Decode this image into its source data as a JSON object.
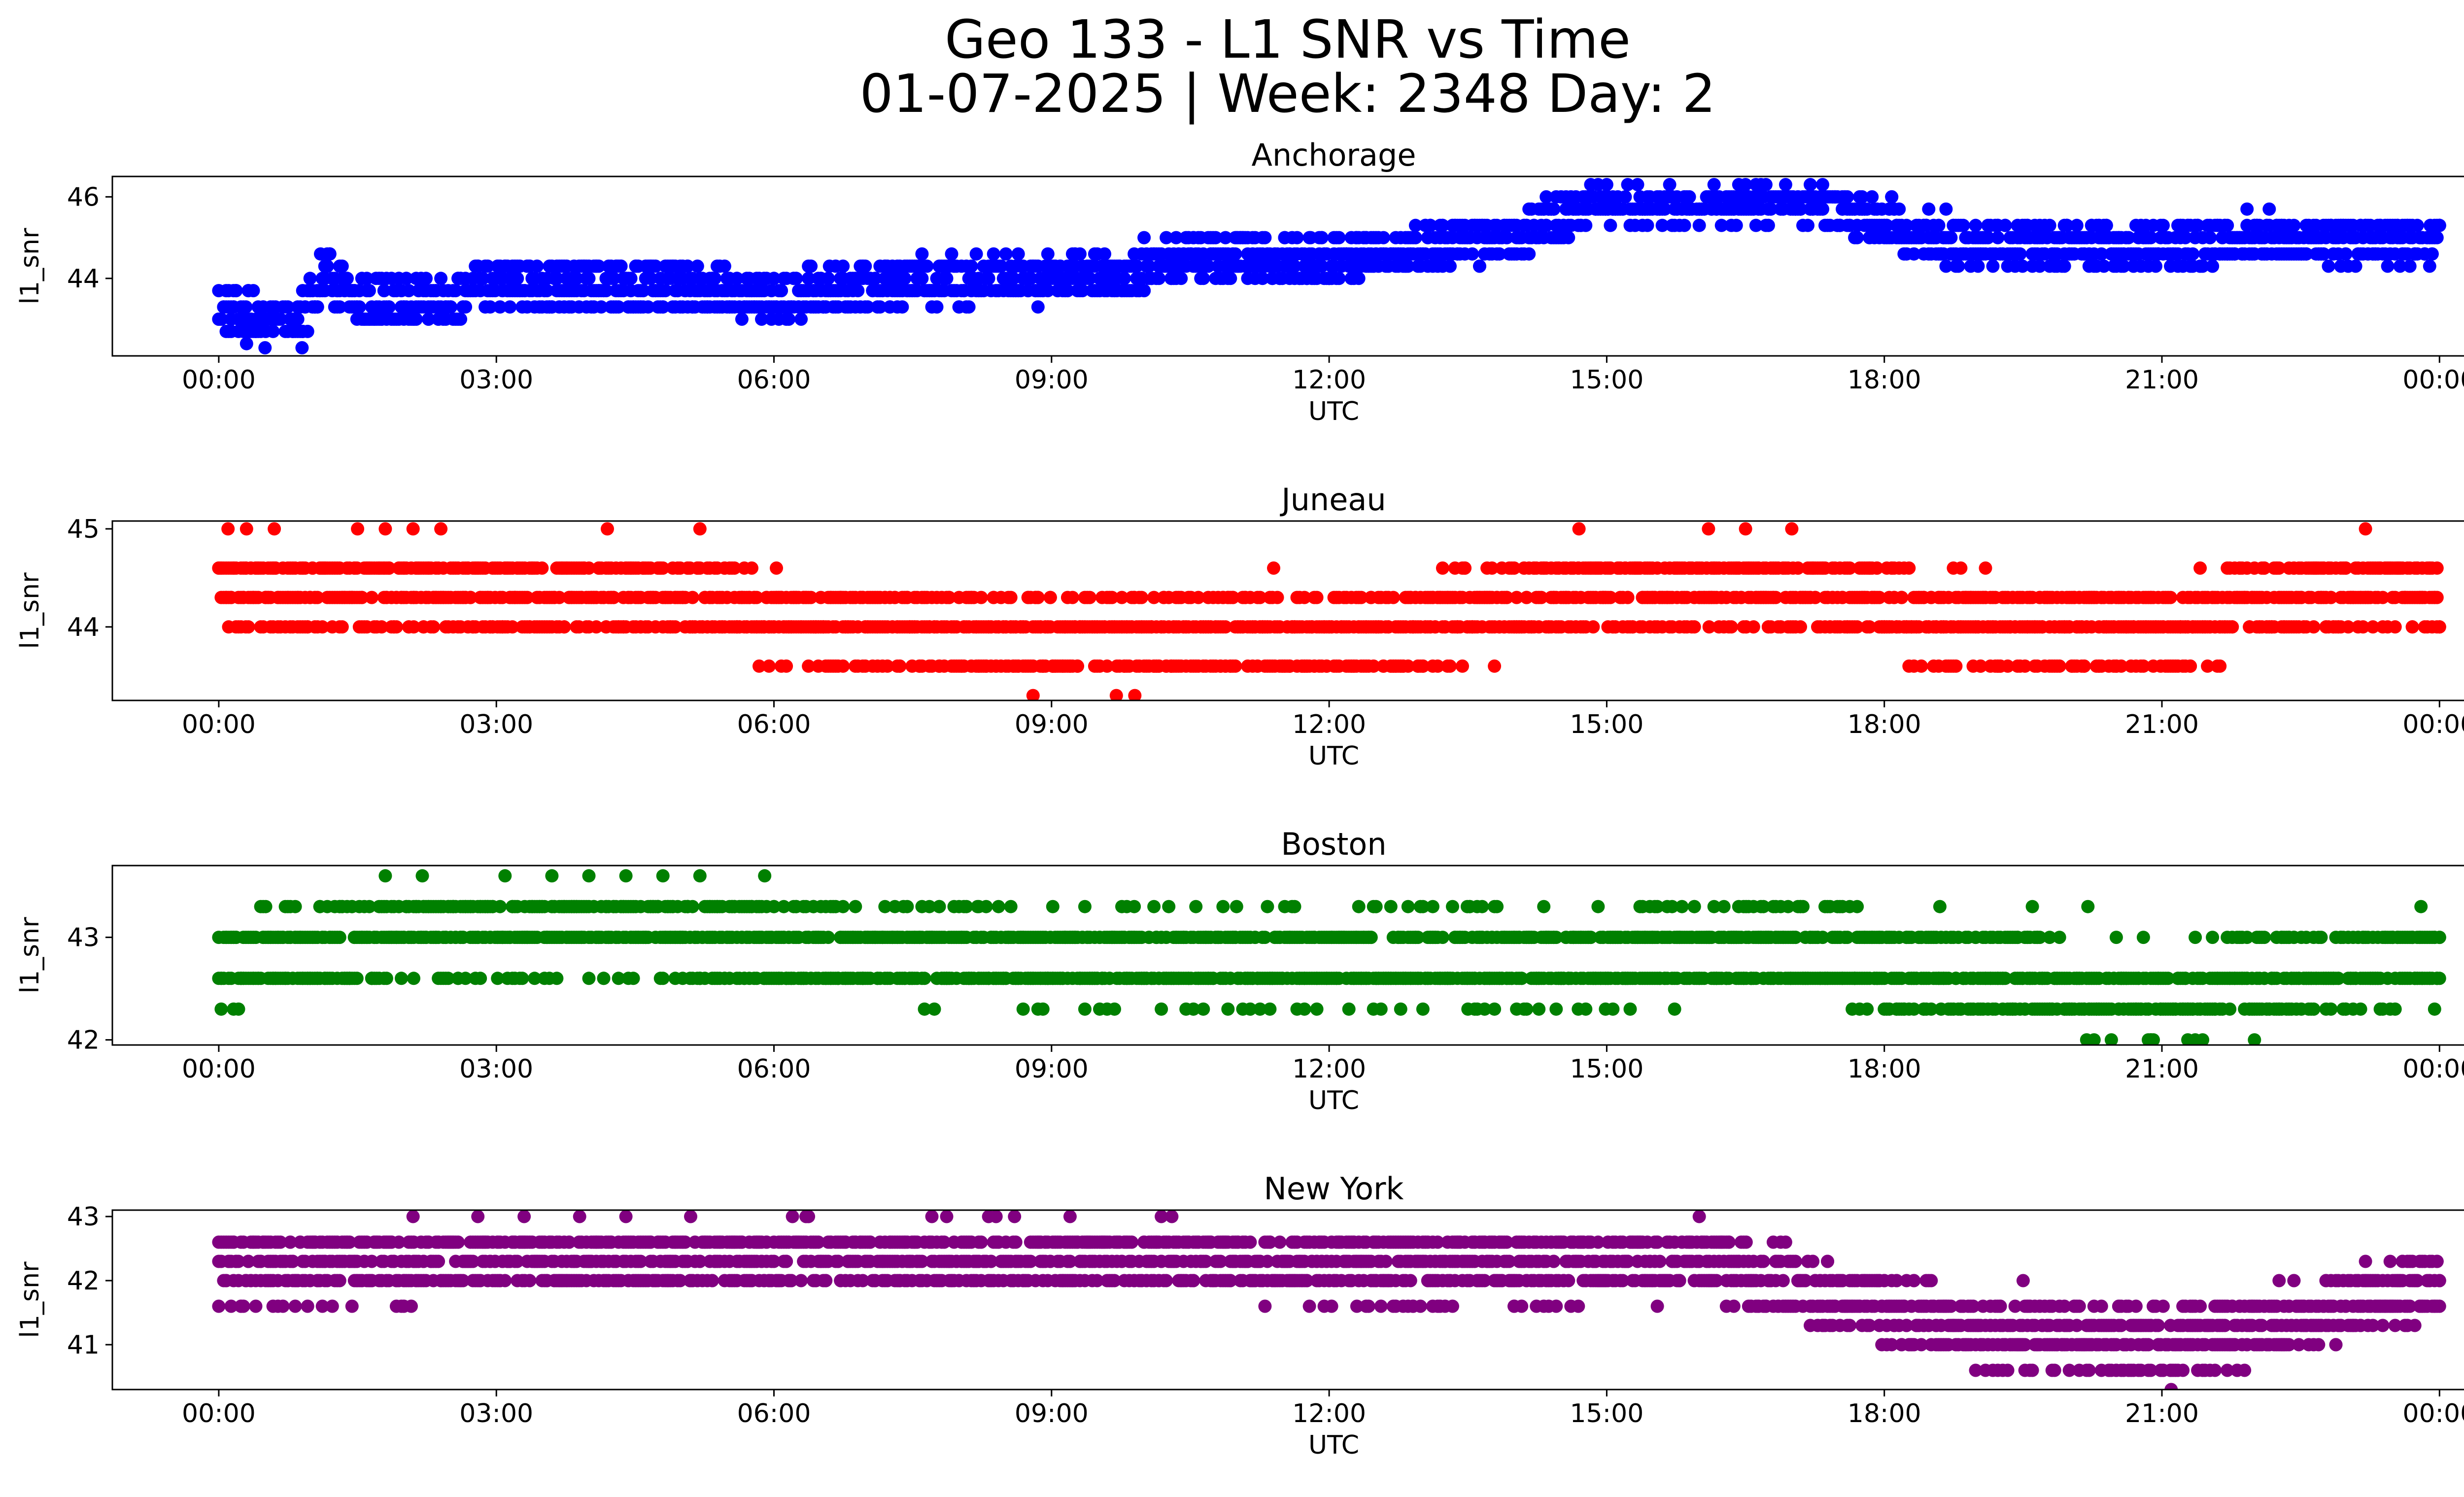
{
  "figure": {
    "title_line1": "Geo 133 - L1 SNR vs Time",
    "title_line2": "01-07-2025 | Week: 2348 Day: 2"
  },
  "chart_data": [
    {
      "type": "scatter",
      "title": "Anchorage",
      "xlabel": "UTC",
      "ylabel": "l1_snr",
      "color": "#0000ff",
      "xticks": [
        "00:00",
        "03:00",
        "06:00",
        "09:00",
        "12:00",
        "15:00",
        "18:00",
        "21:00",
        "00:00"
      ],
      "yticks": [
        44,
        46
      ],
      "ylim": [
        42.1,
        46.5
      ],
      "xlim_hours": [
        -1.15,
        25.25
      ],
      "levels": [
        42.3,
        42.7,
        43.0,
        43.3,
        43.7,
        44.0,
        44.3,
        44.6,
        45.0,
        45.3,
        45.7,
        46.0,
        46.3
      ],
      "profile": [
        [
          0,
          43.3
        ],
        [
          0.5,
          43.0
        ],
        [
          0.8,
          42.8
        ],
        [
          1.2,
          44.1
        ],
        [
          1.5,
          43.4
        ],
        [
          2.5,
          43.5
        ],
        [
          3,
          43.9
        ],
        [
          5,
          43.8
        ],
        [
          6,
          43.5
        ],
        [
          7,
          43.9
        ],
        [
          10,
          44.1
        ],
        [
          10.5,
          44.6
        ],
        [
          12,
          44.4
        ],
        [
          13,
          44.8
        ],
        [
          14,
          45.0
        ],
        [
          14.5,
          45.5
        ],
        [
          15,
          45.9
        ],
        [
          16,
          45.9
        ],
        [
          17,
          46.0
        ],
        [
          17.8,
          45.6
        ],
        [
          18.3,
          45.2
        ],
        [
          19,
          44.8
        ],
        [
          21,
          44.8
        ],
        [
          22,
          45.0
        ],
        [
          24,
          44.9
        ]
      ],
      "spread": 0.55,
      "outliers": [
        [
          0.3,
          42.4
        ],
        [
          0.5,
          42.3
        ],
        [
          0.9,
          42.3
        ],
        [
          1.1,
          44.6
        ],
        [
          1.7,
          44.0
        ],
        [
          3.2,
          44.3
        ],
        [
          4.3,
          44.3
        ],
        [
          5,
          44.0
        ],
        [
          6.6,
          44.3
        ],
        [
          10,
          45.0
        ],
        [
          11,
          45.0
        ],
        [
          11.8,
          45.0
        ],
        [
          15,
          46.3
        ],
        [
          16.5,
          46.3
        ],
        [
          17.2,
          46.3
        ],
        [
          20.4,
          45.3
        ],
        [
          22,
          45.3
        ],
        [
          23.6,
          45.3
        ],
        [
          23.9,
          45.3
        ]
      ]
    },
    {
      "type": "scatter",
      "title": "Juneau",
      "xlabel": "UTC",
      "ylabel": "l1_snr",
      "color": "#ff0000",
      "xticks": [
        "00:00",
        "03:00",
        "06:00",
        "09:00",
        "12:00",
        "15:00",
        "18:00",
        "21:00",
        "00:00"
      ],
      "yticks": [
        44,
        45
      ],
      "ylim": [
        43.25,
        45.08
      ],
      "xlim_hours": [
        -1.15,
        25.25
      ],
      "levels": [
        43.3,
        43.6,
        44.0,
        44.3,
        44.6,
        45.0
      ],
      "profile": [
        [
          0,
          44.4
        ],
        [
          5,
          44.3
        ],
        [
          6,
          44.1
        ],
        [
          9,
          43.9
        ],
        [
          12,
          43.9
        ],
        [
          14,
          44.2
        ],
        [
          15,
          44.4
        ],
        [
          17.5,
          44.4
        ],
        [
          18.5,
          44.1
        ],
        [
          21,
          44.0
        ],
        [
          22,
          44.3
        ],
        [
          24,
          44.4
        ]
      ],
      "spread": 0.4,
      "outliers": [
        [
          0.1,
          45.0
        ],
        [
          0.3,
          45.0
        ],
        [
          0.6,
          45.0
        ],
        [
          1.5,
          45.0
        ],
        [
          1.8,
          45.0
        ],
        [
          2.1,
          45.0
        ],
        [
          2.4,
          45.0
        ],
        [
          4.2,
          45.0
        ],
        [
          5.2,
          45.0
        ],
        [
          8.8,
          43.3
        ],
        [
          9.7,
          43.3
        ],
        [
          9.9,
          43.3
        ],
        [
          11.4,
          44.6
        ],
        [
          14.7,
          45.0
        ],
        [
          16.1,
          45.0
        ],
        [
          16.5,
          45.0
        ],
        [
          17,
          45.0
        ],
        [
          23.2,
          45.0
        ]
      ]
    },
    {
      "type": "scatter",
      "title": "Boston",
      "xlabel": "UTC",
      "ylabel": "l1_snr",
      "color": "#008000",
      "xticks": [
        "00:00",
        "03:00",
        "06:00",
        "09:00",
        "12:00",
        "15:00",
        "18:00",
        "21:00",
        "00:00"
      ],
      "yticks": [
        42,
        43
      ],
      "ylim": [
        41.95,
        43.7
      ],
      "xlim_hours": [
        -1.15,
        25.25
      ],
      "levels": [
        42.0,
        42.3,
        42.6,
        43.0,
        43.3,
        43.6
      ],
      "profile": [
        [
          0,
          42.7
        ],
        [
          1,
          42.9
        ],
        [
          3,
          43.1
        ],
        [
          5,
          43.1
        ],
        [
          6,
          42.9
        ],
        [
          9,
          42.8
        ],
        [
          12,
          42.8
        ],
        [
          15,
          42.8
        ],
        [
          17,
          42.9
        ],
        [
          19,
          42.6
        ],
        [
          21,
          42.4
        ],
        [
          22.5,
          42.6
        ],
        [
          24,
          42.8
        ]
      ],
      "spread": 0.4,
      "outliers": [
        [
          1.8,
          43.6
        ],
        [
          2.2,
          43.6
        ],
        [
          3.6,
          43.6
        ],
        [
          4,
          43.6
        ],
        [
          4.4,
          43.6
        ],
        [
          4.8,
          43.6
        ],
        [
          5.2,
          43.6
        ],
        [
          5.9,
          43.6
        ],
        [
          7.4,
          43.3
        ],
        [
          8.2,
          43.3
        ],
        [
          11,
          43.3
        ],
        [
          13.5,
          42.3
        ],
        [
          18.6,
          43.3
        ],
        [
          19.6,
          43.3
        ],
        [
          20.2,
          43.3
        ],
        [
          23.8,
          43.3
        ]
      ]
    },
    {
      "type": "scatter",
      "title": "New York",
      "xlabel": "UTC",
      "ylabel": "l1_snr",
      "color": "#800080",
      "xticks": [
        "00:00",
        "03:00",
        "06:00",
        "09:00",
        "12:00",
        "15:00",
        "18:00",
        "21:00",
        "00:00"
      ],
      "yticks": [
        41,
        42,
        43
      ],
      "ylim": [
        40.3,
        43.1
      ],
      "xlim_hours": [
        -1.15,
        25.25
      ],
      "levels": [
        40.3,
        40.6,
        41.0,
        41.3,
        41.6,
        42.0,
        42.3,
        42.6,
        43.0
      ],
      "profile": [
        [
          0,
          42.2
        ],
        [
          3,
          42.3
        ],
        [
          6,
          42.4
        ],
        [
          9,
          42.4
        ],
        [
          11,
          42.3
        ],
        [
          13,
          42.2
        ],
        [
          16,
          42.3
        ],
        [
          17,
          42.0
        ],
        [
          18,
          41.5
        ],
        [
          19,
          41.2
        ],
        [
          21,
          41.1
        ],
        [
          22,
          41.2
        ],
        [
          23,
          41.6
        ],
        [
          24,
          42.0
        ]
      ],
      "spread": 0.5,
      "outliers": [
        [
          2.1,
          43.0
        ],
        [
          2.8,
          43.0
        ],
        [
          3.3,
          43.0
        ],
        [
          3.9,
          43.0
        ],
        [
          4.4,
          43.0
        ],
        [
          5.1,
          43.0
        ],
        [
          6.2,
          43.0
        ],
        [
          8.6,
          43.0
        ],
        [
          9.2,
          43.0
        ],
        [
          10.3,
          43.0
        ],
        [
          16,
          43.0
        ],
        [
          21.1,
          40.3
        ],
        [
          12.3,
          41.6
        ],
        [
          14,
          41.6
        ],
        [
          19.5,
          42.0
        ],
        [
          23.2,
          42.3
        ]
      ]
    }
  ]
}
